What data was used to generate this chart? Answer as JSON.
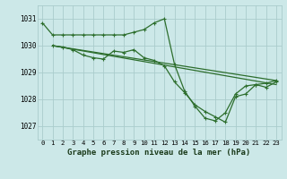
{
  "background_color": "#cce8e8",
  "grid_color": "#aacccc",
  "line_color": "#2d6e2d",
  "xlabel": "Graphe pression niveau de la mer (hPa)",
  "xlim": [
    -0.5,
    23.5
  ],
  "ylim": [
    1026.5,
    1031.5
  ],
  "yticks": [
    1027,
    1028,
    1029,
    1030,
    1031
  ],
  "xticks": [
    0,
    1,
    2,
    3,
    4,
    5,
    6,
    7,
    8,
    9,
    10,
    11,
    12,
    13,
    14,
    15,
    16,
    17,
    18,
    19,
    20,
    21,
    22,
    23
  ],
  "xticklabels": [
    "0",
    "1",
    "2",
    "3",
    "4",
    "5",
    "6",
    "7",
    "8",
    "9",
    "10",
    "11",
    "12",
    "13",
    "14",
    "15",
    "16",
    "17",
    "18",
    "19",
    "20",
    "21",
    "22",
    "23"
  ],
  "lines": [
    {
      "x": [
        0,
        1,
        2,
        3,
        4,
        5,
        6,
        7,
        8,
        9,
        10,
        11,
        12,
        13,
        14,
        15,
        16,
        17,
        18,
        19,
        20,
        21,
        22,
        23
      ],
      "y": [
        1030.85,
        1030.4,
        1030.4,
        1030.4,
        1030.4,
        1030.4,
        1030.4,
        1030.4,
        1030.4,
        1030.5,
        1030.6,
        1030.85,
        1031.0,
        1029.3,
        1028.3,
        1027.75,
        1027.3,
        1027.2,
        1027.5,
        1028.2,
        1028.5,
        1028.55,
        1028.6,
        1028.7
      ],
      "marker": true,
      "lw": 0.9
    },
    {
      "x": [
        1,
        2,
        3,
        4,
        5,
        6,
        7,
        8,
        9,
        10,
        11,
        12,
        13,
        14,
        15,
        16,
        17,
        18,
        19,
        20,
        21,
        22,
        23
      ],
      "y": [
        1030.0,
        1029.95,
        1029.85,
        1029.65,
        1029.55,
        1029.5,
        1029.8,
        1029.75,
        1029.85,
        1029.55,
        1029.45,
        1029.25,
        1028.65,
        1028.25,
        1027.8,
        1027.55,
        1027.35,
        1027.15,
        1028.1,
        1028.2,
        1028.55,
        1028.45,
        1028.65
      ],
      "marker": true,
      "lw": 0.9
    },
    {
      "x": [
        1,
        23
      ],
      "y": [
        1030.0,
        1028.55
      ],
      "marker": false,
      "lw": 0.9
    },
    {
      "x": [
        1,
        23
      ],
      "y": [
        1030.0,
        1028.7
      ],
      "marker": false,
      "lw": 0.9
    }
  ]
}
